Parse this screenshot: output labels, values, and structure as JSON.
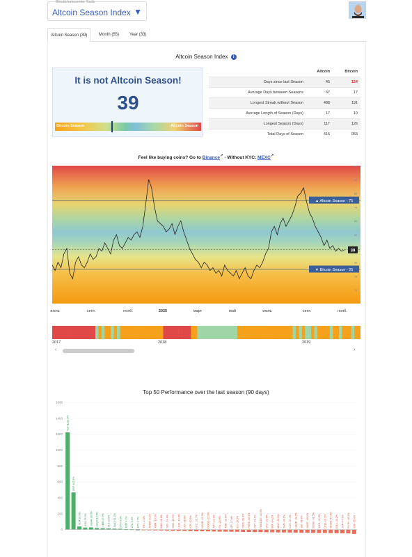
{
  "header": {
    "tools_label": "Blockchaincenter Tools",
    "select_value": "Altcoin Season Index"
  },
  "tabs": [
    {
      "label": "Altcoin Season (39)",
      "active": true
    },
    {
      "label": "Month (55)",
      "active": false
    },
    {
      "label": "Year (33)",
      "active": false
    }
  ],
  "section_title": "Altcoin Season Index",
  "season_card": {
    "message": "It is not Altcoin Season!",
    "value": "39",
    "gauge_left": "Bitcoin Season",
    "gauge_right": "Altcoin Season",
    "marker_value": 39
  },
  "stats": {
    "col_altcoin": "Altcoin",
    "col_bitcoin": "Bitcoin",
    "rows": [
      {
        "label": "Days since last Season",
        "altcoin": "45",
        "bitcoin": "124"
      },
      {
        "label": "Average Days between Seasons",
        "altcoin": "67",
        "bitcoin": "17"
      },
      {
        "label": "Longest Streak without Season",
        "altcoin": "488",
        "bitcoin": "191"
      },
      {
        "label": "Average Length of Season (Days)",
        "altcoin": "17",
        "bitcoin": "10"
      },
      {
        "label": "Longest Season (Days)",
        "altcoin": "117",
        "bitcoin": "126"
      },
      {
        "label": "Total Days of Season",
        "altcoin": "416",
        "bitcoin": "953"
      }
    ]
  },
  "promo": {
    "prefix": "Feel like buying coins? Go to",
    "link1": "Binance",
    "middle": "- Without KYC:",
    "link2": "MEXC"
  },
  "colors": {
    "accent": "#3a5bb5",
    "bitcoin_season": "#f5a11b",
    "altcoin_season": "#e04848",
    "bar_positive": "#4caf6a",
    "bar_negative": "#e8705a"
  },
  "chart_data": [
    {
      "type": "line",
      "title": "",
      "x_ticks": [
        "июль",
        "сент.",
        "нояб.",
        "2025",
        "март",
        "май",
        "июль",
        "сент.",
        "нояб."
      ],
      "ylim": [
        0,
        100
      ],
      "thresholds": [
        {
          "label": "Altcoin Season - 75",
          "value": 75
        },
        {
          "label": "Bitcoin Season - 25",
          "value": 25
        }
      ],
      "current_label": "39",
      "current_value": 39,
      "y_right_ticks": [
        0,
        10,
        20,
        30,
        40,
        50,
        60,
        70,
        80,
        90,
        100
      ],
      "values": [
        28,
        24,
        30,
        26,
        36,
        40,
        22,
        18,
        30,
        34,
        28,
        26,
        30,
        36,
        32,
        34,
        40,
        38,
        44,
        40,
        36,
        46,
        50,
        42,
        40,
        44,
        48,
        46,
        50,
        52,
        48,
        56,
        72,
        90,
        84,
        70,
        60,
        58,
        56,
        52,
        54,
        58,
        50,
        56,
        60,
        52,
        46,
        40,
        36,
        32,
        30,
        26,
        30,
        28,
        24,
        26,
        22,
        24,
        20,
        28,
        24,
        22,
        20,
        24,
        18,
        22,
        26,
        20,
        18,
        24,
        28,
        26,
        30,
        36,
        40,
        52,
        56,
        50,
        58,
        62,
        56,
        60,
        64,
        70,
        78,
        80,
        84,
        74,
        66,
        62,
        56,
        52,
        48,
        42,
        46,
        40,
        42,
        38,
        40,
        38,
        39
      ]
    },
    {
      "type": "heatmap",
      "title": "",
      "x_ticks": [
        "2017",
        "2018",
        "2019"
      ],
      "segments": [
        "alt",
        "alt",
        "alt",
        "alt",
        "alt",
        "alt",
        "alt",
        "alt",
        "alt",
        "alt",
        "alt",
        "alt",
        "alt",
        "alt",
        "mix",
        "btc",
        "mix",
        "btc",
        "btc",
        "mix",
        "btc",
        "mix",
        "btc",
        "btc",
        "btc",
        "btc",
        "btc",
        "btc",
        "btc",
        "btc",
        "btc",
        "btc",
        "btc",
        "btc",
        "btc",
        "btc",
        "alt",
        "alt",
        "alt",
        "alt",
        "alt",
        "alt",
        "alt",
        "alt",
        "alt",
        "btc",
        "btc",
        "mix",
        "mix",
        "mix",
        "mix",
        "mix",
        "mix",
        "mix",
        "mix",
        "mix",
        "mix",
        "mix",
        "mix",
        "mix",
        "btc",
        "btc",
        "btc",
        "btc",
        "btc",
        "btc",
        "btc",
        "btc",
        "btc",
        "btc",
        "btc",
        "btc",
        "btc",
        "btc",
        "btc",
        "btc",
        "btc",
        "btc",
        "mix",
        "btc",
        "mix",
        "btc",
        "mix",
        "mix",
        "btc",
        "mix",
        "btc",
        "btc",
        "btc",
        "btc",
        "mix",
        "btc",
        "btc",
        "mix",
        "btc",
        "btc",
        "btc",
        "mix",
        "btc",
        "btc"
      ]
    },
    {
      "type": "bar",
      "title": "Top 50 Performance over the last season (90 days)",
      "ylim": [
        -100,
        1600
      ],
      "y_ticks": [
        0,
        200,
        400,
        600,
        800,
        1000,
        1200,
        1400,
        1600
      ],
      "categories": [
        "XCN",
        "XRP",
        "XLM",
        "ADA",
        "HBAR",
        "ALGO",
        "XMR",
        "SUI",
        "AVAX",
        "ETH",
        "DOT",
        "LTC",
        "BTC",
        "TRX",
        "ATOM",
        "XMR",
        "BNB",
        "SOL",
        "TON",
        "LINK",
        "UNI",
        "ICP",
        "ETC",
        "NEAR",
        "DOGE",
        "APT",
        "FIL",
        "ARB",
        "OP",
        "INJ",
        "SHIB",
        "PEPE",
        "FET",
        "RENDER",
        "STX",
        "IMX",
        "MNT",
        "TAO",
        "KAS",
        "HBAR",
        "SEI",
        "AAVE",
        "BONK",
        "WLD",
        "LDO",
        "ONDO",
        "ENA",
        "JUP",
        "PYTH",
        "WIF"
      ],
      "labels": [
        "XCN 1222.9%",
        "XRP 467.5%",
        "XLM 38.9%",
        "ADA 25.3%",
        "HBAR 28.0%",
        "ALGO 19.5%",
        "XMR 17.0%",
        "SUI 13.6%",
        "AVAX 11.2%",
        "ETH 9.6%",
        "DOT 4.1%",
        "LTC 3.4%",
        "BTC 1.7%",
        "TRX -2.8%",
        "ATOM -6.2%",
        "XMR -10.3%",
        "BNB -11.8%",
        "SOL -14.4%",
        "TON -15.9%",
        "LINK -16.8%",
        "UNI -18.0%",
        "ICP -20.3%",
        "ETC -21.7%",
        "NEAR -22.3%",
        "DOGE -22.9%",
        "APT -24.3%",
        "FIL -26.0%",
        "ARB -26.8%",
        "OP -27.6%",
        "INJ -28.5%",
        "SHIB -29.6%",
        "PEPE -30.1%",
        "FET -31.4%",
        "RENDER -32.0%",
        "STX -33.6%",
        "IMX -34.2%",
        "MNT -35.5%",
        "TAO -36.1%",
        "KAS -37.4%",
        "HBAR -38.2%",
        "SEI -39.6%",
        "AAVE -40.3%",
        "BONK -41.5%",
        "WLD -42.8%",
        "LDO -43.3%",
        "ONDO -44.9%",
        "ENA -46.2%",
        "JUP -47.5%",
        "PYTH -48.3%",
        "WIF -55.0%"
      ],
      "values": [
        1222.9,
        467.5,
        38.9,
        25.3,
        28.0,
        19.5,
        17.0,
        13.6,
        11.2,
        9.6,
        4.1,
        3.4,
        1.7,
        -2.8,
        -6.2,
        -10.3,
        -11.8,
        -14.4,
        -15.9,
        -16.8,
        -18.0,
        -20.3,
        -21.7,
        -22.3,
        -22.9,
        -24.3,
        -26.0,
        -26.8,
        -27.6,
        -28.5,
        -29.6,
        -30.1,
        -31.4,
        -32.0,
        -33.6,
        -34.2,
        -35.5,
        -36.1,
        -37.4,
        -38.2,
        -39.6,
        -40.3,
        -41.5,
        -42.8,
        -43.3,
        -44.9,
        -46.2,
        -47.5,
        -48.3,
        -55.0
      ]
    }
  ]
}
